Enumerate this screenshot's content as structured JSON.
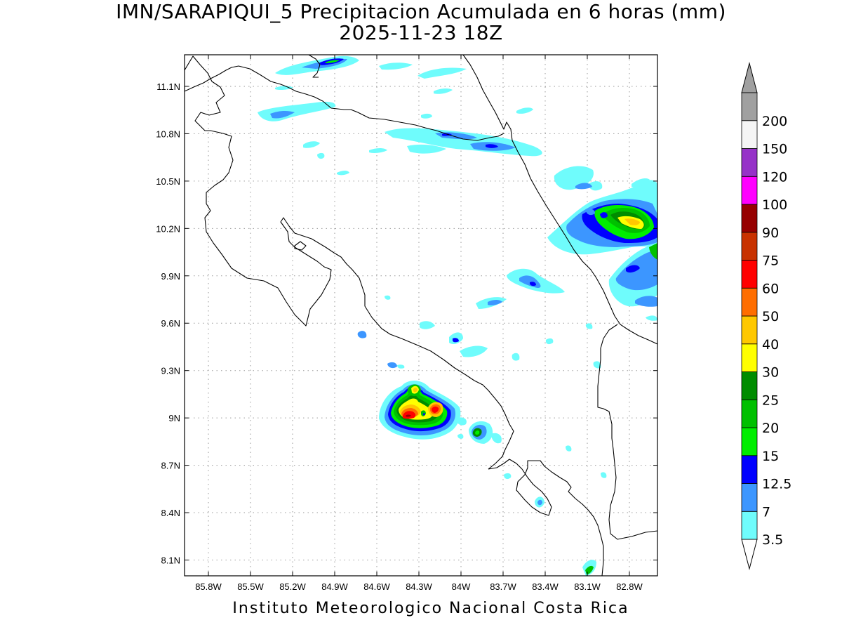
{
  "title": {
    "line1": "IMN/SARAPIQUI_5 Precipitacion Acumulada en 6 horas (mm)",
    "line2": "2025-11-23 18Z"
  },
  "footer": "Instituto Meteorologico Nacional Costa Rica",
  "axes": {
    "lon_ticks": [
      {
        "value": -85.8,
        "label": "85.8W"
      },
      {
        "value": -85.5,
        "label": "85.5W"
      },
      {
        "value": -85.2,
        "label": "85.2W"
      },
      {
        "value": -84.9,
        "label": "84.9W"
      },
      {
        "value": -84.6,
        "label": "84.6W"
      },
      {
        "value": -84.3,
        "label": "84.3W"
      },
      {
        "value": -84.0,
        "label": "84W"
      },
      {
        "value": -83.7,
        "label": "83.7W"
      },
      {
        "value": -83.4,
        "label": "83.4W"
      },
      {
        "value": -83.1,
        "label": "83.1W"
      },
      {
        "value": -82.8,
        "label": "82.8W"
      }
    ],
    "lat_ticks": [
      {
        "value": 11.1,
        "label": "11.1N"
      },
      {
        "value": 10.8,
        "label": "10.8N"
      },
      {
        "value": 10.5,
        "label": "10.5N"
      },
      {
        "value": 10.2,
        "label": "10.2N"
      },
      {
        "value": 9.9,
        "label": "9.9N"
      },
      {
        "value": 9.6,
        "label": "9.6N"
      },
      {
        "value": 9.3,
        "label": "9.3N"
      },
      {
        "value": 9.0,
        "label": "9N"
      },
      {
        "value": 8.7,
        "label": "8.7N"
      },
      {
        "value": 8.4,
        "label": "8.4N"
      },
      {
        "value": 8.1,
        "label": "8.1N"
      }
    ],
    "lon_range": [
      -85.97,
      -82.6
    ],
    "lat_range": [
      8.0,
      11.3
    ],
    "grid": "dotted"
  },
  "colorbar": {
    "levels": [
      {
        "label": "3.5",
        "color": "#6ffcfc"
      },
      {
        "label": "7",
        "color": "#3c96ff"
      },
      {
        "label": "12.5",
        "color": "#0000ff"
      },
      {
        "label": "15",
        "color": "#00ee00"
      },
      {
        "label": "20",
        "color": "#00c000"
      },
      {
        "label": "25",
        "color": "#008c00"
      },
      {
        "label": "30",
        "color": "#ffff00"
      },
      {
        "label": "40",
        "color": "#ffc800"
      },
      {
        "label": "50",
        "color": "#ff6e00"
      },
      {
        "label": "60",
        "color": "#ff0000"
      },
      {
        "label": "75",
        "color": "#c83200"
      },
      {
        "label": "90",
        "color": "#960000"
      },
      {
        "label": "100",
        "color": "#ff00ff"
      },
      {
        "label": "120",
        "color": "#9632c8"
      },
      {
        "label": "150",
        "color": "#f5f5f5"
      },
      {
        "label": "200",
        "color": "#a0a0a0"
      }
    ],
    "under_color": "#ffffff",
    "over_color": "#a0a0a0"
  }
}
